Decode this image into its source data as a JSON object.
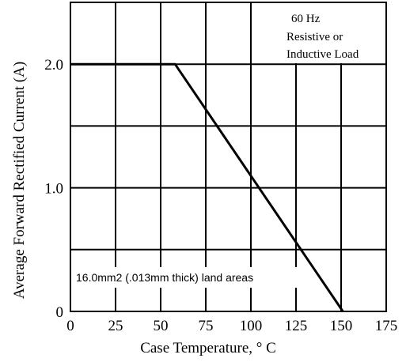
{
  "chart_data": {
    "type": "line",
    "title": "",
    "xlabel": "Case Temperature, ° C",
    "ylabel": "Average Forward Rectified Current (A)",
    "xlim": [
      0,
      175
    ],
    "ylim": [
      0,
      2.5
    ],
    "x_ticks": [
      "0",
      "25",
      "50",
      "75",
      "100",
      "125",
      "150",
      "175"
    ],
    "y_ticks": [
      {
        "value": 0,
        "label": "0"
      },
      {
        "value": 1.0,
        "label": "1.0"
      },
      {
        "value": 2.0,
        "label": "2.0"
      }
    ],
    "grid": true,
    "series": [
      {
        "x": [
          0,
          58,
          151
        ],
        "y": [
          2.0,
          2.0,
          0
        ]
      }
    ],
    "annotations": {
      "conditions": [
        "60 Hz",
        "Resistive or",
        "Inductive Load"
      ],
      "land_area": "16.0mm2 (.013mm thick) land areas"
    }
  }
}
